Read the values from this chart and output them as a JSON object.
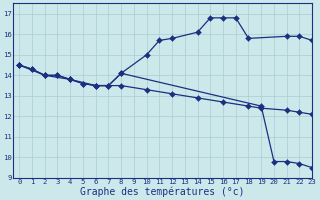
{
  "background_color": "#cde8ea",
  "grid_color": "#aacdd0",
  "line_color": "#1a3080",
  "xlabel": "Graphe des températures (°c)",
  "xlim": [
    -0.5,
    23
  ],
  "ylim": [
    9,
    17.5
  ],
  "yticks": [
    9,
    10,
    11,
    12,
    13,
    14,
    15,
    16,
    17
  ],
  "xticks": [
    0,
    1,
    2,
    3,
    4,
    5,
    6,
    7,
    8,
    9,
    10,
    11,
    12,
    13,
    14,
    15,
    16,
    17,
    18,
    19,
    20,
    21,
    22,
    23
  ],
  "line1_x": [
    0,
    1,
    2,
    3,
    4,
    5,
    6,
    7,
    8,
    10,
    11,
    12,
    14,
    15,
    16,
    17,
    18,
    21,
    22,
    23
  ],
  "line1_y": [
    14.5,
    14.3,
    14.0,
    14.0,
    13.8,
    13.6,
    13.5,
    13.5,
    14.1,
    15.0,
    15.7,
    15.8,
    16.1,
    16.8,
    16.8,
    16.8,
    15.8,
    15.9,
    15.9,
    15.7
  ],
  "line2_x": [
    0,
    2,
    4,
    6,
    8,
    10,
    12,
    14,
    16,
    18,
    19,
    21,
    22,
    23
  ],
  "line2_y": [
    14.5,
    14.0,
    13.8,
    13.5,
    13.5,
    13.3,
    13.1,
    12.9,
    12.7,
    12.5,
    12.4,
    12.3,
    12.2,
    12.1
  ],
  "line3_x": [
    0,
    1,
    2,
    3,
    4,
    5,
    6,
    7,
    8,
    19,
    20,
    21,
    22,
    23
  ],
  "line3_y": [
    14.5,
    14.3,
    14.0,
    14.0,
    13.8,
    13.6,
    13.5,
    13.5,
    14.1,
    12.5,
    9.8,
    9.8,
    9.7,
    9.5
  ],
  "markersize": 3.0,
  "linewidth": 0.9,
  "xlabel_fontsize": 7.0,
  "tick_fontsize": 5.2
}
